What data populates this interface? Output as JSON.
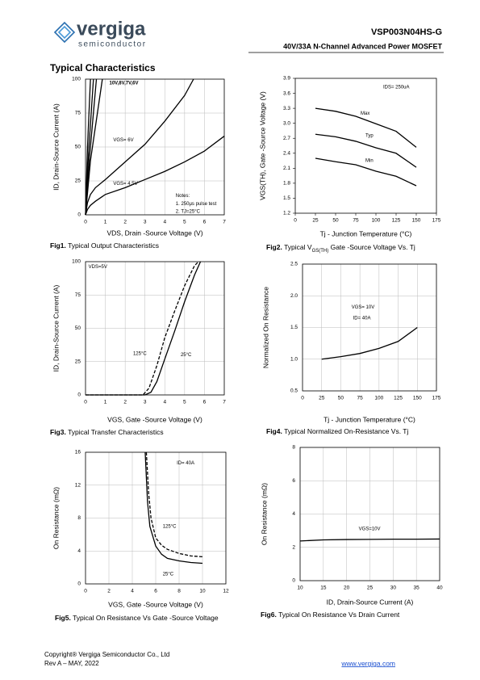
{
  "header": {
    "logo": "vergiga",
    "logo_sub": "semiconductor",
    "part": "VSP003N04HS-G",
    "subtitle": "40V/33A N-Channel Advanced Power MOSFET"
  },
  "section_title": "Typical Characteristics",
  "chart_data": [
    {
      "type": "line",
      "label": "Fig1.",
      "title": "Typical Output Characteristics",
      "xlabel": "VDS, Drain -Source Voltage (V)",
      "ylabel": "ID, Drain-Source Current (A)",
      "xlim": [
        0,
        7
      ],
      "xticks": [
        0,
        1,
        2,
        3,
        4,
        5,
        6,
        7
      ],
      "ylim": [
        0,
        100
      ],
      "yticks": [
        0,
        25,
        50,
        75,
        100
      ],
      "grid": true,
      "series": [
        {
          "color": "#000000",
          "x": [
            0,
            0.1,
            0.25
          ],
          "values": [
            0,
            50,
            100
          ]
        },
        {
          "color": "#000000",
          "x": [
            0,
            0.15,
            0.4
          ],
          "values": [
            0,
            45,
            100
          ]
        },
        {
          "color": "#000000",
          "x": [
            0,
            0.2,
            0.55
          ],
          "values": [
            0,
            42,
            100
          ]
        },
        {
          "color": "#000000",
          "x": [
            0,
            0.25,
            0.85
          ],
          "values": [
            0,
            40,
            100
          ]
        },
        {
          "color": "#000000",
          "x": [
            0,
            0.1,
            0.25,
            0.5,
            1,
            2,
            3,
            4,
            5,
            5.45
          ],
          "values": [
            0,
            9,
            15,
            20,
            26,
            39,
            52,
            69,
            88,
            100
          ]
        },
        {
          "color": "#000000",
          "x": [
            0,
            0.1,
            0.25,
            0.5,
            1,
            2,
            3,
            4,
            5,
            6,
            7
          ],
          "values": [
            0,
            4,
            7,
            10,
            15,
            20,
            26,
            32,
            39,
            47,
            58
          ]
        }
      ],
      "annotations": [
        "10V,8V,7V,6V",
        "VGS= 6V",
        "VGS= 4.5V",
        "Notes:",
        "1. 250μs pulse test",
        "2. TJ=25°C"
      ]
    },
    {
      "type": "line",
      "label": "Fig2.",
      "title": "Typical V",
      "title_sub": "GS(TH)",
      "title_end": " Gate -Source Voltage Vs. Tj",
      "xlabel": "Tj - Junction Temperature (°C)",
      "ylabel": "VGS(TH), Gate -Source Voltage (V)",
      "xlim": [
        0,
        175
      ],
      "xticks": [
        0,
        25,
        50,
        75,
        100,
        125,
        150,
        175
      ],
      "ylim": [
        1.2,
        3.9
      ],
      "yticks": [
        1.2,
        1.5,
        1.8,
        2.1,
        2.4,
        2.7,
        {
          "value": 3,
          "label": "3.0"
        },
        3.3,
        3.6,
        3.9
      ],
      "grid": false,
      "series": [
        {
          "name": "Max",
          "color": "#000000",
          "x": [
            25,
            50,
            75,
            100,
            125,
            150
          ],
          "values": [
            3.3,
            3.24,
            3.14,
            2.99,
            2.84,
            2.52
          ]
        },
        {
          "name": "Typ",
          "color": "#000000",
          "x": [
            25,
            50,
            75,
            100,
            125,
            150
          ],
          "values": [
            2.78,
            2.73,
            2.64,
            2.51,
            2.4,
            2.12
          ]
        },
        {
          "name": "Min",
          "color": "#000000",
          "x": [
            25,
            50,
            75,
            100,
            125,
            150
          ],
          "values": [
            2.3,
            2.23,
            2.17,
            2.04,
            1.94,
            1.75
          ]
        }
      ],
      "annotations": [
        "IDS= 250uA"
      ]
    },
    {
      "type": "line",
      "label": "Fig3.",
      "title": "Typical Transfer Characteristics",
      "xlabel": "VGS, Gate -Source Voltage (V)",
      "ylabel": "ID, Drain-Source Current (A)",
      "xlim": [
        0,
        7
      ],
      "xticks": [
        0,
        1,
        2,
        3,
        4,
        5,
        6,
        7
      ],
      "ylim": [
        0,
        100
      ],
      "yticks": [
        0,
        25,
        50,
        75,
        100
      ],
      "grid": true,
      "series": [
        {
          "name": "125°C",
          "color": "#000000",
          "style": "dashed",
          "x": [
            0,
            2.9,
            3.2,
            3.6,
            4,
            4.5,
            5,
            5.5,
            5.7
          ],
          "values": [
            0,
            0,
            5,
            22,
            43,
            63,
            82,
            97,
            100
          ]
        },
        {
          "name": "25°C",
          "color": "#000000",
          "style": "solid",
          "x": [
            0,
            3,
            3.3,
            3.6,
            4,
            4.5,
            5,
            5.5,
            5.8
          ],
          "values": [
            0,
            0,
            2,
            10,
            27,
            48,
            70,
            90,
            100
          ]
        }
      ],
      "annotations": [
        "VDS=5V"
      ]
    },
    {
      "type": "line",
      "label": "Fig4.",
      "title": "Typical Normalized On-Resistance Vs. Tj",
      "xlabel": "Tj - Junction Temperature (°C)",
      "ylabel": "Normalized On Resistance",
      "xlim": [
        0,
        175
      ],
      "xticks": [
        0,
        25,
        50,
        75,
        100,
        125,
        150,
        175
      ],
      "ylim": [
        0.5,
        2.5
      ],
      "yticks": [
        0.5,
        {
          "value": 1,
          "label": "1.0"
        },
        1.5,
        {
          "value": 2,
          "label": "2.0"
        },
        2.5
      ],
      "grid": true,
      "series": [
        {
          "color": "#000000",
          "x": [
            25,
            50,
            75,
            100,
            125,
            150
          ],
          "values": [
            1,
            1.04,
            1.09,
            1.17,
            1.28,
            1.5
          ]
        }
      ],
      "annotations": [
        "VGS= 10V",
        "ID= 40A"
      ]
    },
    {
      "type": "line",
      "label": "Fig5.",
      "title": "Typical On Resistance Vs Gate -Source Voltage",
      "xlabel": "VGS, Gate -Source Voltage (V)",
      "ylabel": "On Resistance (mΩ)",
      "xlim": [
        0,
        12
      ],
      "xticks": [
        0,
        2,
        4,
        6,
        8,
        10,
        12
      ],
      "ylim": [
        0,
        16
      ],
      "yticks": [
        0,
        4,
        8,
        12,
        16
      ],
      "grid": true,
      "series": [
        {
          "name": "125°C",
          "color": "#000000",
          "style": "dashed",
          "x": [
            5.2,
            5.4,
            5.6,
            6,
            6.5,
            7,
            8,
            9,
            10
          ],
          "values": [
            16,
            11,
            8,
            5.6,
            4.7,
            4.2,
            3.7,
            3.4,
            3.3
          ]
        },
        {
          "name": "25°C",
          "color": "#000000",
          "style": "solid",
          "x": [
            5.1,
            5.3,
            5.5,
            6,
            6.5,
            7,
            8,
            9,
            10
          ],
          "values": [
            16,
            10,
            7,
            4.6,
            3.6,
            3.1,
            2.8,
            2.6,
            2.5
          ]
        }
      ],
      "annotations": [
        "ID= 40A"
      ]
    },
    {
      "type": "line",
      "label": "Fig6.",
      "title": "Typical On Resistance Vs Drain Current",
      "xlabel": "ID, Drain-Source Current (A)",
      "ylabel": "On Resistance (mΩ)",
      "xlim": [
        10,
        40
      ],
      "xticks": [
        10,
        15,
        20,
        25,
        30,
        35,
        40
      ],
      "ylim": [
        0,
        8
      ],
      "yticks": [
        0,
        2,
        4,
        6,
        8
      ],
      "grid": true,
      "series": [
        {
          "color": "#000000",
          "x": [
            10,
            15,
            20,
            25,
            30,
            35,
            40
          ],
          "values": [
            2.38,
            2.45,
            2.47,
            2.48,
            2.49,
            2.49,
            2.5
          ]
        }
      ],
      "annotations": [
        "VGS=10V"
      ]
    }
  ],
  "footer": {
    "copyright": "Copyright® Vergiga Semiconductor Co., Ltd",
    "revision": "Rev A – MAY, 2022",
    "website": "www.vergiga.com"
  }
}
